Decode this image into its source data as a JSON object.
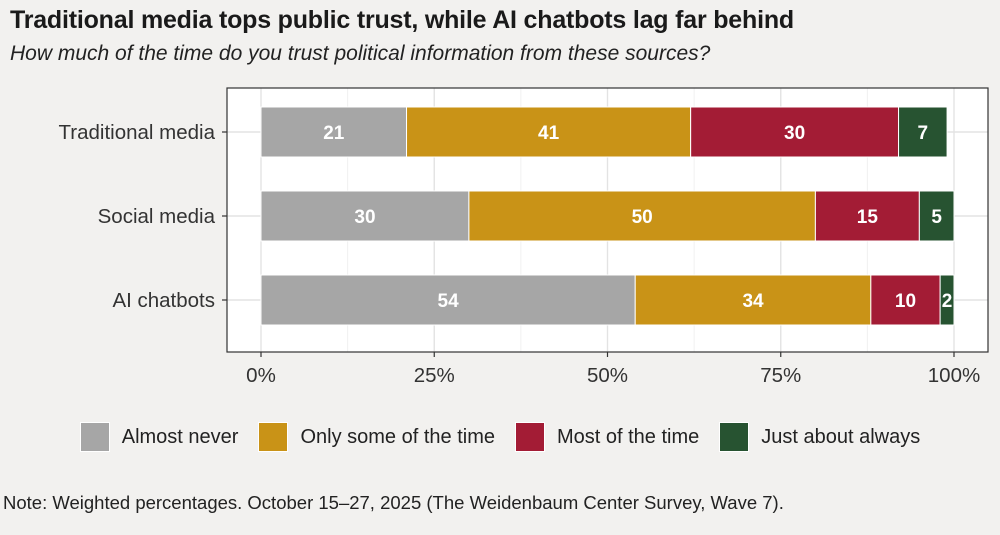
{
  "chart_data": {
    "type": "bar",
    "orientation": "horizontal",
    "stacked": true,
    "title": "Traditional media tops public trust, while AI chatbots lag far behind",
    "subtitle": "How much of the time do you trust political information from these sources?",
    "categories": [
      "Traditional media",
      "Social media",
      "AI chatbots"
    ],
    "series": [
      {
        "name": "Almost never",
        "color": "#a6a6a6",
        "values": [
          21,
          30,
          54
        ],
        "labels": [
          "21",
          "30",
          "54"
        ]
      },
      {
        "name": "Only some of the time",
        "color": "#c99317",
        "values": [
          41,
          50,
          34
        ],
        "labels": [
          "41",
          "50",
          "34"
        ]
      },
      {
        "name": "Most of the time",
        "color": "#a31c35",
        "values": [
          30,
          15,
          10
        ],
        "labels": [
          "30",
          "15",
          "10"
        ]
      },
      {
        "name": "Just about always",
        "color": "#275331",
        "values": [
          7,
          5,
          2
        ],
        "labels": [
          "7",
          "5",
          "2"
        ]
      }
    ],
    "xlim": [
      0,
      100
    ],
    "xticks": [
      0,
      25,
      50,
      75,
      100
    ],
    "xtick_labels": [
      "0%",
      "25%",
      "50%",
      "75%",
      "100%"
    ],
    "xlabel": "",
    "ylabel": "",
    "grid": true,
    "legend_position": "bottom"
  },
  "note": "Note: Weighted percentages. October 15–27, 2025 (The Weidenbaum Center Survey, Wave 7)."
}
